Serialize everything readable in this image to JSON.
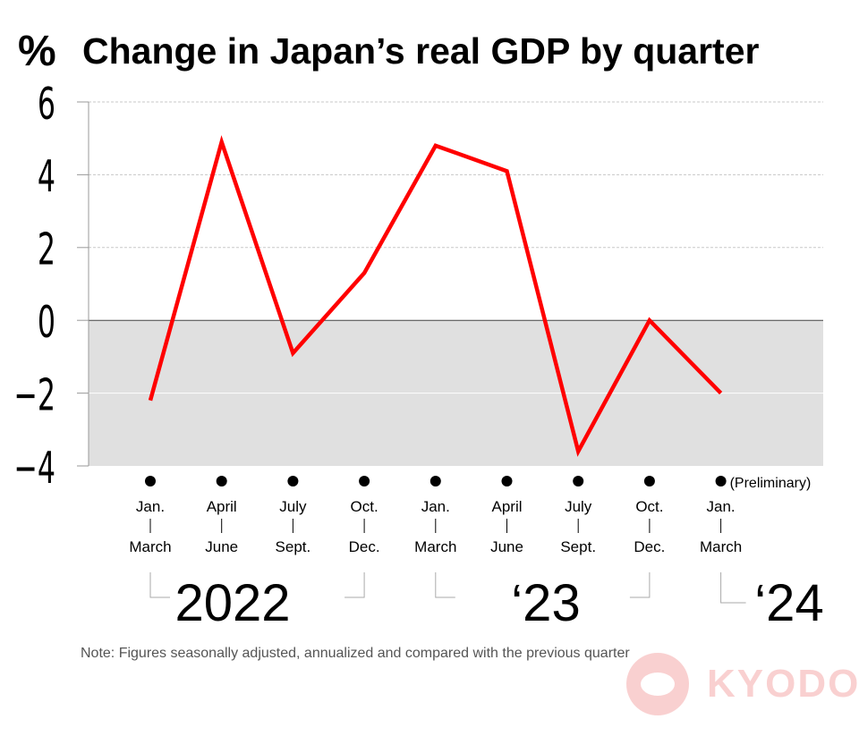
{
  "header": {
    "unit": "%",
    "title": "Change in Japan’s real GDP by quarter"
  },
  "chart_data": {
    "type": "line",
    "title": "Change in Japan’s real GDP by quarter",
    "ylabel": "%",
    "ylim": [
      -4,
      6
    ],
    "yticks": [
      6,
      4,
      2,
      0,
      -2,
      -4
    ],
    "ytick_labels": [
      "6",
      "4",
      "2",
      "0",
      "−2",
      "−4"
    ],
    "grid": true,
    "negative_region_shaded": true,
    "categories": [
      {
        "top": "Jan.",
        "bottom": "March"
      },
      {
        "top": "April",
        "bottom": "June"
      },
      {
        "top": "July",
        "bottom": "Sept."
      },
      {
        "top": "Oct.",
        "bottom": "Dec."
      },
      {
        "top": "Jan.",
        "bottom": "March"
      },
      {
        "top": "April",
        "bottom": "June"
      },
      {
        "top": "July",
        "bottom": "Sept."
      },
      {
        "top": "Oct.",
        "bottom": "Dec."
      },
      {
        "top": "Jan.",
        "bottom": "March"
      }
    ],
    "series": [
      {
        "values": [
          -2.2,
          4.9,
          -0.9,
          1.3,
          4.8,
          4.1,
          -3.6,
          0.0,
          -2.0
        ],
        "color": "#ff0000"
      }
    ],
    "annotation": "(Preliminary)",
    "year_labels": [
      {
        "label": "2022",
        "from": 0,
        "to": 3
      },
      {
        "label": "‘23",
        "from": 4,
        "to": 7
      },
      {
        "label": "‘24",
        "from": 8,
        "to": 8
      }
    ]
  },
  "note": "Note: Figures seasonally adjusted, annualized and compared with the previous quarter",
  "logo": {
    "text": "KYODO",
    "color": "#e00000"
  }
}
